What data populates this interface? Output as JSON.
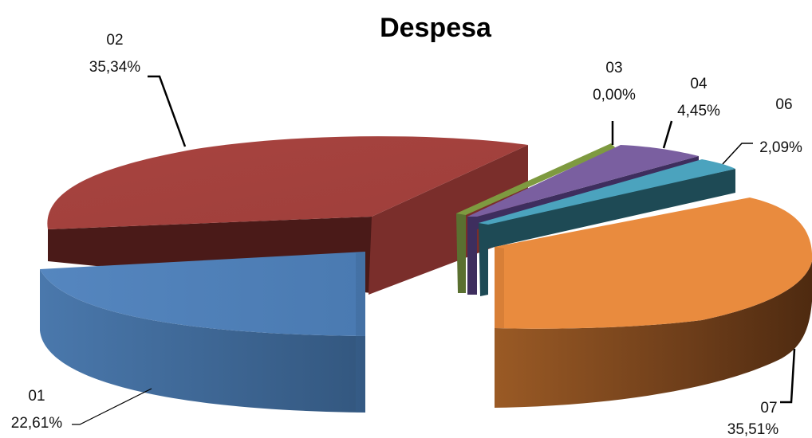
{
  "chart_data": {
    "type": "pie",
    "title": "Despesa",
    "categories": [
      "01",
      "02",
      "03",
      "04",
      "06",
      "07"
    ],
    "values": [
      22.61,
      35.34,
      0.0,
      4.45,
      2.09,
      35.51
    ],
    "value_labels": [
      "22,61%",
      "35,34%",
      "0,00%",
      "4,45%",
      "2,09%",
      "35,51%"
    ],
    "colors": [
      "#4F81BD",
      "#C0504D",
      "#9BBB59",
      "#8064A2",
      "#4BACC6",
      "#F79646"
    ],
    "style": "3d-exploded",
    "legend": "none"
  }
}
